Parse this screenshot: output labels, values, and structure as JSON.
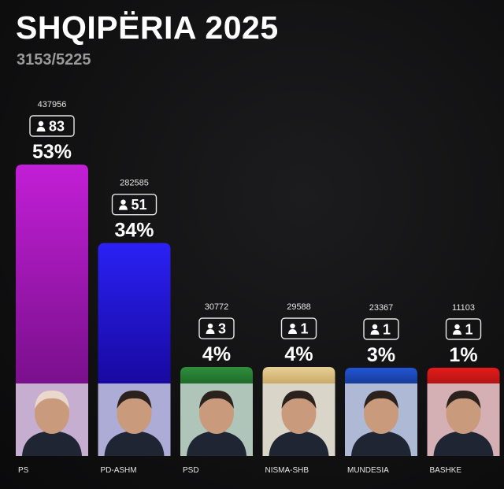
{
  "header": {
    "title": "SHQIPËRIA 2025",
    "subtitle": "3153/5225"
  },
  "chart_data": {
    "type": "bar",
    "title": "SHQIPËRIA 2025",
    "subtitle": "3153/5225",
    "categories": [
      "PS",
      "PD-ASHM",
      "PSD",
      "NISMA-SHB",
      "MUNDESIA",
      "BASHKE"
    ],
    "percent_labels": [
      "53%",
      "34%",
      "4%",
      "4%",
      "3%",
      "1%"
    ],
    "values": [
      53,
      34,
      4,
      4,
      3,
      1
    ],
    "votes": [
      437956,
      282585,
      30772,
      29588,
      23367,
      11103
    ],
    "seats": [
      83,
      51,
      3,
      1,
      1,
      1
    ],
    "colors": [
      [
        "#c21fd6",
        "#7a108c"
      ],
      [
        "#2a21f4",
        "#1809a0"
      ],
      [
        "#2f8f3d",
        "#1f6b2a"
      ],
      [
        "#e8cf95",
        "#c9ac6a"
      ],
      [
        "#2255d4",
        "#163c9a"
      ],
      [
        "#e41b1b",
        "#b41414"
      ]
    ],
    "seat_icon": "person-icon",
    "photo_icon": "portrait-icon",
    "grid": false,
    "legend": "none"
  }
}
